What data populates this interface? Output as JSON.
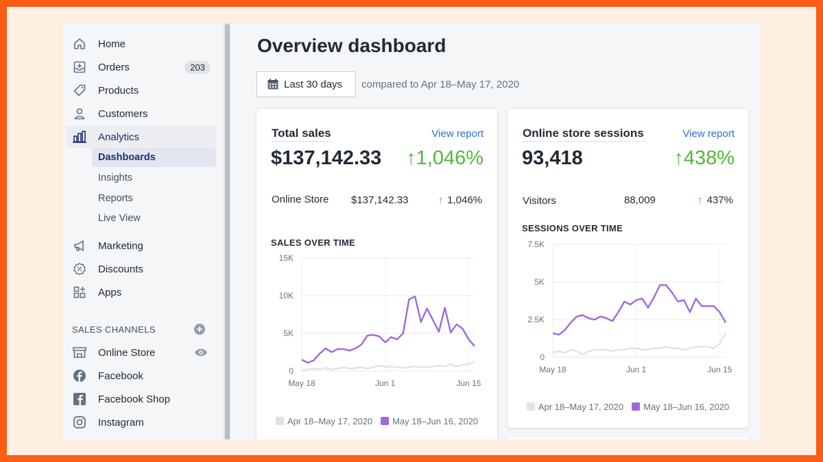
{
  "colors": {
    "frame": "#fb5c16",
    "accent_purple": "#9c6ade",
    "comparison_gray": "#dfe3e8",
    "positive_green": "#50b83c",
    "link_blue": "#2c6ecb"
  },
  "sidebar": {
    "items": [
      {
        "label": "Home",
        "icon": "home-icon"
      },
      {
        "label": "Orders",
        "icon": "orders-icon",
        "badge": "203"
      },
      {
        "label": "Products",
        "icon": "tag-icon"
      },
      {
        "label": "Customers",
        "icon": "person-icon"
      },
      {
        "label": "Analytics",
        "icon": "analytics-icon"
      },
      {
        "label": "Marketing",
        "icon": "megaphone-icon"
      },
      {
        "label": "Discounts",
        "icon": "discount-icon"
      },
      {
        "label": "Apps",
        "icon": "apps-icon"
      }
    ],
    "analytics_sub": [
      "Dashboards",
      "Insights",
      "Reports",
      "Live View"
    ],
    "sales_channels_title": "SALES CHANNELS",
    "channels": [
      {
        "label": "Online Store",
        "icon": "store-icon"
      },
      {
        "label": "Facebook",
        "icon": "facebook-icon"
      },
      {
        "label": "Facebook Shop",
        "icon": "facebook-square-icon"
      },
      {
        "label": "Instagram",
        "icon": "instagram-icon"
      }
    ]
  },
  "main": {
    "title": "Overview dashboard",
    "date_button": "Last 30 days",
    "compare_text": "compared to Apr 18–May 17, 2020",
    "sales_card": {
      "title": "Total sales",
      "link": "View report",
      "value": "$137,142.33",
      "change": "↑1,046%",
      "row": {
        "label": "Online Store",
        "value": "$137,142.33",
        "arrow": "↑",
        "change": "1,046%"
      },
      "chart_heading": "SALES OVER TIME"
    },
    "sessions_card": {
      "title": "Online store sessions",
      "link": "View report",
      "value": "93,418",
      "change": "↑438%",
      "row": {
        "label": "Visitors",
        "value": "88,009",
        "arrow": "↑",
        "change": "437%"
      },
      "chart_heading": "SESSIONS OVER TIME"
    }
  },
  "chart_data": [
    {
      "type": "line",
      "title": "SALES OVER TIME",
      "ylim": [
        0,
        15000
      ],
      "yticks": [
        "15K",
        "10K",
        "5K",
        "0"
      ],
      "yticks_values": [
        15000,
        10000,
        5000,
        0
      ],
      "xticks": [
        "May 18",
        "Jun 1",
        "Jun 15"
      ],
      "xticks_index": [
        0,
        14,
        28
      ],
      "series": [
        {
          "name": "May 18–Jun 16, 2020",
          "color": "#9c6ade",
          "values": [
            1500,
            1100,
            1400,
            2300,
            3000,
            2500,
            2900,
            2900,
            2700,
            3000,
            3500,
            4700,
            4800,
            4600,
            3800,
            4500,
            4200,
            5000,
            9500,
            9900,
            6500,
            8300,
            6800,
            5200,
            8400,
            5100,
            6200,
            5600,
            4200,
            3300
          ]
        },
        {
          "name": "Apr 18–May 17, 2020",
          "color": "#dfe3e8",
          "values": [
            100,
            200,
            300,
            200,
            400,
            200,
            300,
            500,
            300,
            400,
            500,
            300,
            500,
            700,
            500,
            600,
            500,
            400,
            500,
            600,
            500,
            500,
            600,
            700,
            600,
            900,
            600,
            800,
            900,
            1300
          ]
        }
      ]
    },
    {
      "type": "line",
      "title": "SESSIONS OVER TIME",
      "ylim": [
        0,
        7500
      ],
      "yticks": [
        "7.5K",
        "5K",
        "2.5K",
        "0"
      ],
      "yticks_values": [
        7500,
        5000,
        2500,
        0
      ],
      "xticks": [
        "May 18",
        "Jun 1",
        "Jun 15"
      ],
      "xticks_index": [
        0,
        14,
        28
      ],
      "series": [
        {
          "name": "May 18–Jun 16, 2020",
          "color": "#9c6ade",
          "values": [
            1600,
            1500,
            1800,
            2300,
            2700,
            2800,
            2600,
            2500,
            2700,
            2600,
            2400,
            3000,
            3700,
            3500,
            3800,
            3900,
            3300,
            4000,
            4800,
            4800,
            4300,
            3700,
            3800,
            3000,
            3900,
            3400,
            3400,
            3400,
            3000,
            2300
          ]
        },
        {
          "name": "Apr 18–May 17, 2020",
          "color": "#dfe3e8",
          "values": [
            300,
            400,
            300,
            500,
            400,
            200,
            400,
            500,
            500,
            500,
            400,
            500,
            500,
            600,
            600,
            500,
            500,
            600,
            600,
            700,
            600,
            600,
            500,
            600,
            700,
            700,
            700,
            600,
            900,
            1600
          ]
        }
      ]
    }
  ]
}
